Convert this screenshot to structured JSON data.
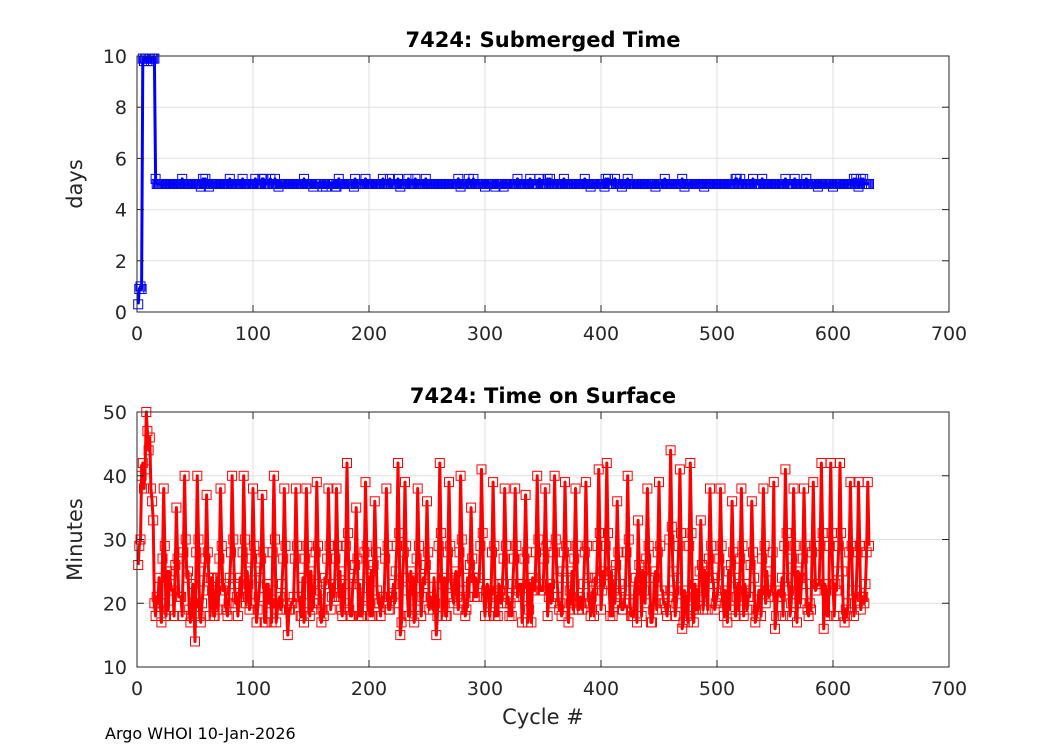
{
  "footer_text": "Argo WHOI 10-Jan-2026",
  "chart_data": [
    {
      "type": "line",
      "title": "7424: Submerged Time",
      "xlabel": "",
      "ylabel": "days",
      "xlim": [
        0,
        700
      ],
      "ylim": [
        0,
        10
      ],
      "xticks": [
        0,
        100,
        200,
        300,
        400,
        500,
        600,
        700
      ],
      "yticks": [
        0,
        2,
        4,
        6,
        8,
        10
      ],
      "grid": true,
      "marker": "square",
      "color": "#0000ff",
      "series": [
        {
          "name": "Submerged Time",
          "x_start": 1,
          "x_end": 631,
          "initial_values": [
            0.3,
            0.9,
            1.0,
            0.9,
            9.9,
            9.8,
            9.9,
            9.9,
            9.8,
            9.9,
            9.9,
            9.8,
            9.9,
            9.9,
            9.9,
            5.2,
            5.0
          ],
          "steady_value": 5.0,
          "steady_range": [
            4.9,
            5.2
          ]
        }
      ]
    },
    {
      "type": "line",
      "title": "7424: Time on Surface",
      "xlabel": "Cycle #",
      "ylabel": "Minutes",
      "xlim": [
        0,
        700
      ],
      "ylim": [
        10,
        50
      ],
      "xticks": [
        0,
        100,
        200,
        300,
        400,
        500,
        600,
        700
      ],
      "yticks": [
        10,
        20,
        30,
        40,
        50
      ],
      "grid": true,
      "marker": "square",
      "color": "#ff0000",
      "series": [
        {
          "name": "Time on Surface",
          "x_start": 1,
          "x_end": 631,
          "initial_values": [
            26,
            29,
            30,
            40,
            42,
            38,
            41,
            50,
            47,
            44,
            46,
            38,
            36
          ],
          "peaks": [
            [
              13,
              46
            ],
            [
              23,
              38
            ],
            [
              34,
              35
            ],
            [
              41,
              40
            ],
            [
              52,
              40
            ],
            [
              60,
              37
            ],
            [
              72,
              38
            ],
            [
              82,
              40
            ],
            [
              92,
              40
            ],
            [
              100,
              38
            ],
            [
              108,
              37
            ],
            [
              118,
              40
            ],
            [
              127,
              38
            ],
            [
              137,
              38
            ],
            [
              146,
              38
            ],
            [
              155,
              39
            ],
            [
              165,
              38
            ],
            [
              172,
              38
            ],
            [
              181,
              42
            ],
            [
              189,
              35
            ],
            [
              197,
              39
            ],
            [
              205,
              36
            ],
            [
              215,
              38
            ],
            [
              225,
              42
            ],
            [
              231,
              39
            ],
            [
              242,
              38
            ],
            [
              250,
              36
            ],
            [
              261,
              42
            ],
            [
              269,
              39
            ],
            [
              279,
              40
            ],
            [
              288,
              35
            ],
            [
              297,
              41
            ],
            [
              307,
              39
            ],
            [
              317,
              38
            ],
            [
              326,
              38
            ],
            [
              335,
              37
            ],
            [
              345,
              40
            ],
            [
              352,
              38
            ],
            [
              360,
              40
            ],
            [
              369,
              39
            ],
            [
              378,
              38
            ],
            [
              387,
              39
            ],
            [
              398,
              41
            ],
            [
              405,
              42
            ],
            [
              414,
              36
            ],
            [
              423,
              40
            ],
            [
              432,
              33
            ],
            [
              440,
              38
            ],
            [
              450,
              39
            ],
            [
              460,
              44
            ],
            [
              468,
              41
            ],
            [
              477,
              42
            ],
            [
              486,
              33
            ],
            [
              494,
              38
            ],
            [
              503,
              38
            ],
            [
              513,
              36
            ],
            [
              521,
              38
            ],
            [
              530,
              36
            ],
            [
              540,
              38
            ],
            [
              549,
              39
            ],
            [
              559,
              41
            ],
            [
              566,
              38
            ],
            [
              575,
              38
            ],
            [
              583,
              39
            ],
            [
              590,
              42
            ],
            [
              598,
              42
            ],
            [
              606,
              42
            ],
            [
              615,
              39
            ],
            [
              622,
              39
            ],
            [
              630,
              39
            ]
          ],
          "lows": [
            [
              50,
              14
            ],
            [
              55,
              17
            ],
            [
              110,
              17
            ],
            [
              130,
              15
            ],
            [
              144,
              17
            ],
            [
              205,
              16
            ],
            [
              227,
              15
            ],
            [
              258,
              15
            ],
            [
              283,
              18
            ],
            [
              345,
              16
            ],
            [
              372,
              17
            ],
            [
              431,
              17
            ],
            [
              470,
              16
            ],
            [
              509,
              17
            ],
            [
              550,
              16
            ],
            [
              569,
              17
            ],
            [
              592,
              16
            ],
            [
              612,
              18
            ]
          ],
          "baseline": 20,
          "baseline_range": [
            17,
            25
          ]
        }
      ]
    }
  ]
}
